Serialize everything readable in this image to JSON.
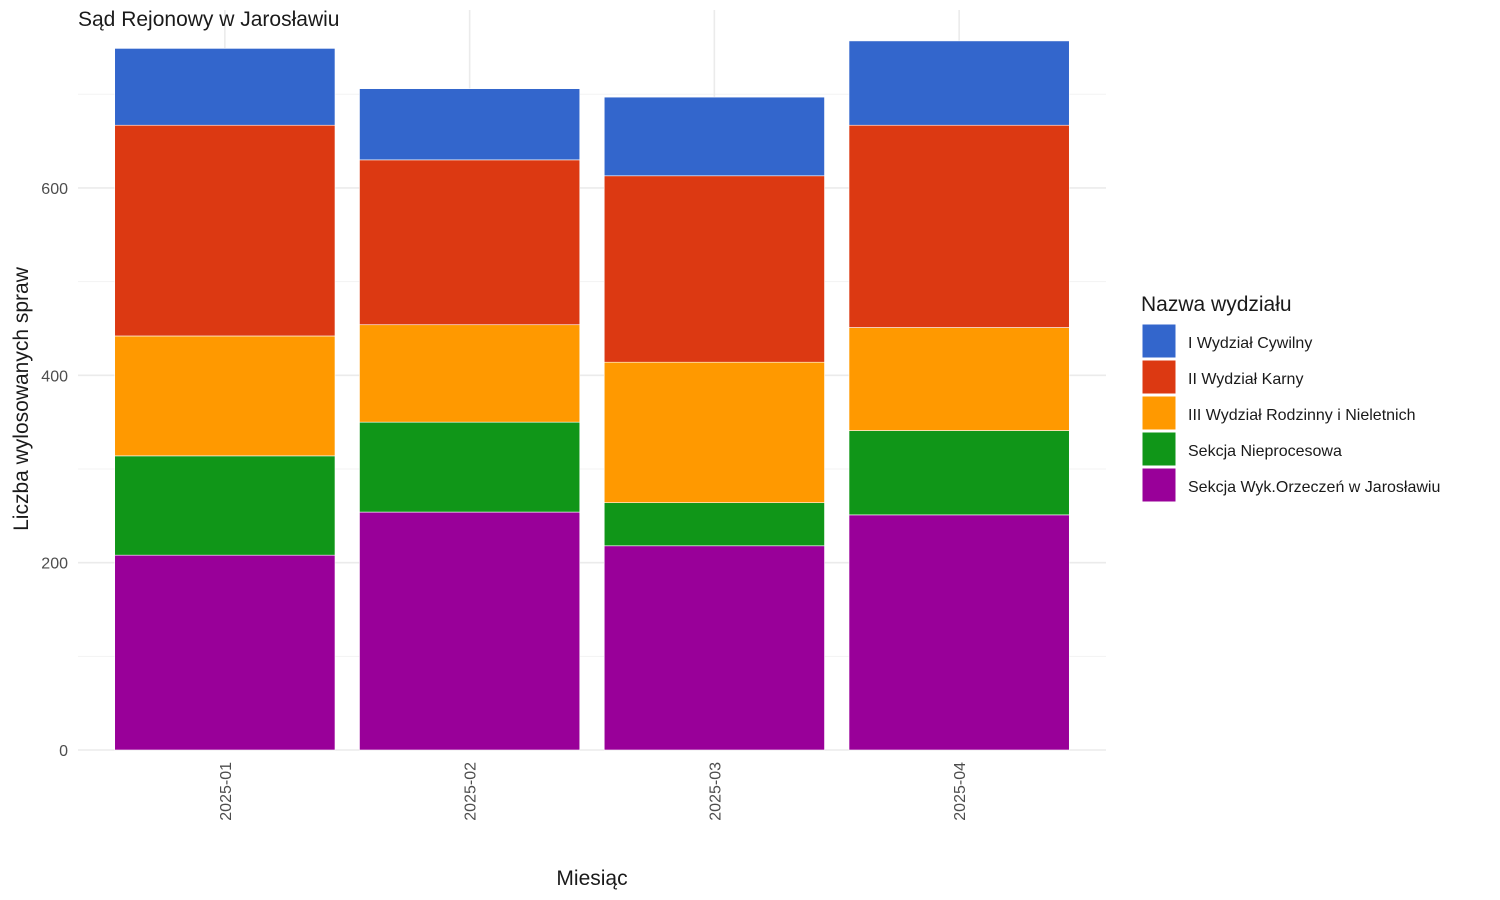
{
  "chart_data": {
    "type": "bar",
    "stacked": true,
    "title": "Sąd Rejonowy w Jarosławiu",
    "xlabel": "Miesiąc",
    "ylabel": "Liczba wylosowanych spraw",
    "categories": [
      "2025-01",
      "2025-02",
      "2025-03",
      "2025-04"
    ],
    "ylim": [
      0,
      790
    ],
    "y_ticks": [
      0,
      200,
      400,
      600
    ],
    "grid": true,
    "legend": {
      "title": "Nazwa wydziału",
      "position": "right"
    },
    "series": [
      {
        "name": "Sekcja Wyk.Orzeczeń w Jarosławiu",
        "color": "#990099",
        "values": [
          208,
          254,
          218,
          251
        ]
      },
      {
        "name": "Sekcja Nieprocesowa",
        "color": "#109618",
        "values": [
          106,
          96,
          46,
          90
        ]
      },
      {
        "name": "III Wydział Rodzinny i Nieletnich",
        "color": "#FF9900",
        "values": [
          128,
          104,
          150,
          110
        ]
      },
      {
        "name": "II Wydział Karny",
        "color": "#DC3912",
        "values": [
          225,
          176,
          199,
          216
        ]
      },
      {
        "name": "I Wydział Cywilny",
        "color": "#3366CC",
        "values": [
          82,
          76,
          84,
          90
        ]
      }
    ]
  }
}
